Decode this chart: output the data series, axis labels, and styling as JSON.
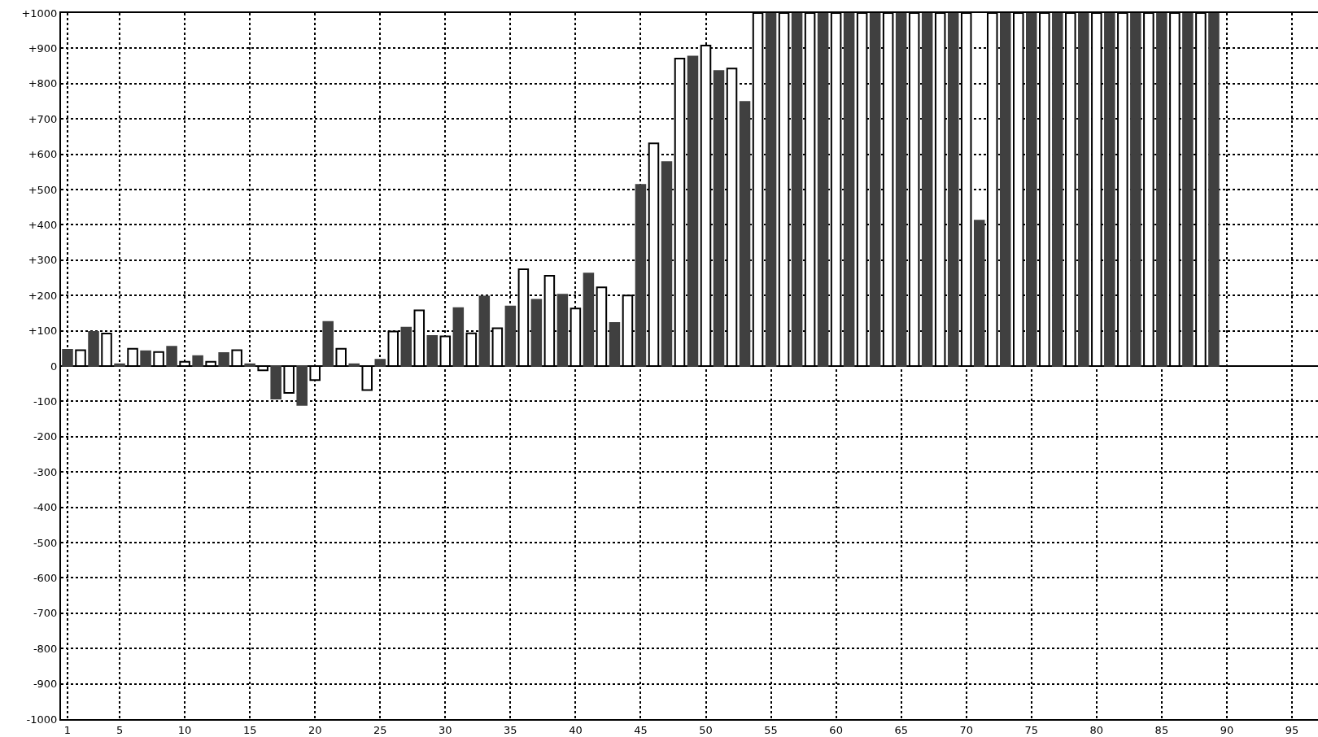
{
  "chart_data": {
    "type": "bar",
    "x": [
      1,
      2,
      3,
      4,
      5,
      6,
      7,
      8,
      9,
      10,
      11,
      12,
      13,
      14,
      15,
      16,
      17,
      18,
      19,
      20,
      21,
      22,
      23,
      24,
      25,
      26,
      27,
      28,
      29,
      30,
      31,
      32,
      33,
      34,
      35,
      36,
      37,
      38,
      39,
      40,
      41,
      42,
      43,
      44,
      45,
      46,
      47,
      48,
      49,
      50,
      51,
      52,
      53,
      54,
      55,
      56,
      57,
      58,
      59,
      60,
      61,
      62,
      63,
      64,
      65,
      66,
      67,
      68,
      69,
      70,
      71,
      72,
      73,
      74,
      75,
      76,
      77,
      78,
      79,
      80,
      81,
      82,
      83,
      84,
      85,
      86,
      87,
      88,
      89
    ],
    "values": [
      46,
      45,
      97,
      92,
      5,
      49,
      42,
      40,
      55,
      12,
      28,
      12,
      37,
      45,
      5,
      -12,
      -92,
      -76,
      -110,
      -40,
      125,
      49,
      5,
      -68,
      18,
      98,
      109,
      158,
      85,
      84,
      164,
      93,
      197,
      107,
      169,
      274,
      188,
      256,
      202,
      163,
      262,
      223,
      122,
      200,
      513,
      631,
      578,
      871,
      877,
      908,
      836,
      843,
      748,
      1000,
      1000,
      1000,
      1000,
      1000,
      1000,
      1000,
      1000,
      1000,
      1000,
      1000,
      1000,
      1000,
      1000,
      1000,
      1000,
      1000,
      412,
      1000,
      1000,
      1000,
      1000,
      1000,
      1000,
      1000,
      1000,
      1000,
      1000,
      1000,
      1000,
      1000,
      1000,
      1000,
      1000,
      1000,
      1000
    ],
    "colors": [
      "#404040",
      "#ffffff",
      "#404040",
      "#ffffff",
      "#404040",
      "#ffffff",
      "#404040",
      "#ffffff",
      "#404040",
      "#ffffff",
      "#404040",
      "#ffffff",
      "#404040",
      "#ffffff",
      "#404040",
      "#ffffff",
      "#404040",
      "#ffffff",
      "#404040",
      "#ffffff",
      "#404040",
      "#ffffff",
      "#404040",
      "#ffffff",
      "#404040",
      "#ffffff",
      "#404040",
      "#ffffff",
      "#404040",
      "#ffffff",
      "#404040",
      "#ffffff",
      "#404040",
      "#ffffff",
      "#404040",
      "#ffffff",
      "#404040",
      "#ffffff",
      "#404040",
      "#ffffff",
      "#404040",
      "#ffffff",
      "#404040",
      "#ffffff",
      "#404040",
      "#ffffff",
      "#404040",
      "#ffffff",
      "#404040",
      "#ffffff",
      "#404040",
      "#ffffff",
      "#404040",
      "#ffffff",
      "#404040",
      "#ffffff",
      "#404040",
      "#ffffff",
      "#404040",
      "#ffffff",
      "#404040",
      "#ffffff",
      "#404040",
      "#ffffff",
      "#404040",
      "#ffffff",
      "#404040",
      "#ffffff",
      "#404040",
      "#ffffff",
      "#404040",
      "#ffffff",
      "#404040",
      "#ffffff",
      "#404040",
      "#ffffff",
      "#404040",
      "#ffffff",
      "#404040",
      "#ffffff",
      "#404040",
      "#ffffff",
      "#404040",
      "#ffffff",
      "#404040",
      "#ffffff",
      "#404040",
      "#ffffff",
      "#404040"
    ],
    "xlim": [
      0.5,
      97
    ],
    "xticks": [
      1,
      5,
      10,
      15,
      20,
      25,
      30,
      35,
      40,
      45,
      50,
      55,
      60,
      65,
      70,
      75,
      80,
      85,
      90,
      95
    ],
    "ylim": [
      -1000,
      1000
    ],
    "yticks": [
      {
        "value": -1000,
        "label": "-1000"
      },
      {
        "value": -900,
        "label": "-900"
      },
      {
        "value": -800,
        "label": "-800"
      },
      {
        "value": -700,
        "label": "-700"
      },
      {
        "value": -600,
        "label": "-600"
      },
      {
        "value": -500,
        "label": "-500"
      },
      {
        "value": -400,
        "label": "-400"
      },
      {
        "value": -300,
        "label": "-300"
      },
      {
        "value": -200,
        "label": "-200"
      },
      {
        "value": -100,
        "label": "-100"
      },
      {
        "value": 0,
        "label": "0"
      },
      {
        "value": 100,
        "label": "+100"
      },
      {
        "value": 200,
        "label": "+200"
      },
      {
        "value": 300,
        "label": "+300"
      },
      {
        "value": 400,
        "label": "+400"
      },
      {
        "value": 500,
        "label": "+500"
      },
      {
        "value": 600,
        "label": "+600"
      },
      {
        "value": 700,
        "label": "+700"
      },
      {
        "value": 800,
        "label": "+800"
      },
      {
        "value": 900,
        "label": "+900"
      },
      {
        "value": 1000,
        "label": "+1000"
      }
    ],
    "grid": true
  }
}
